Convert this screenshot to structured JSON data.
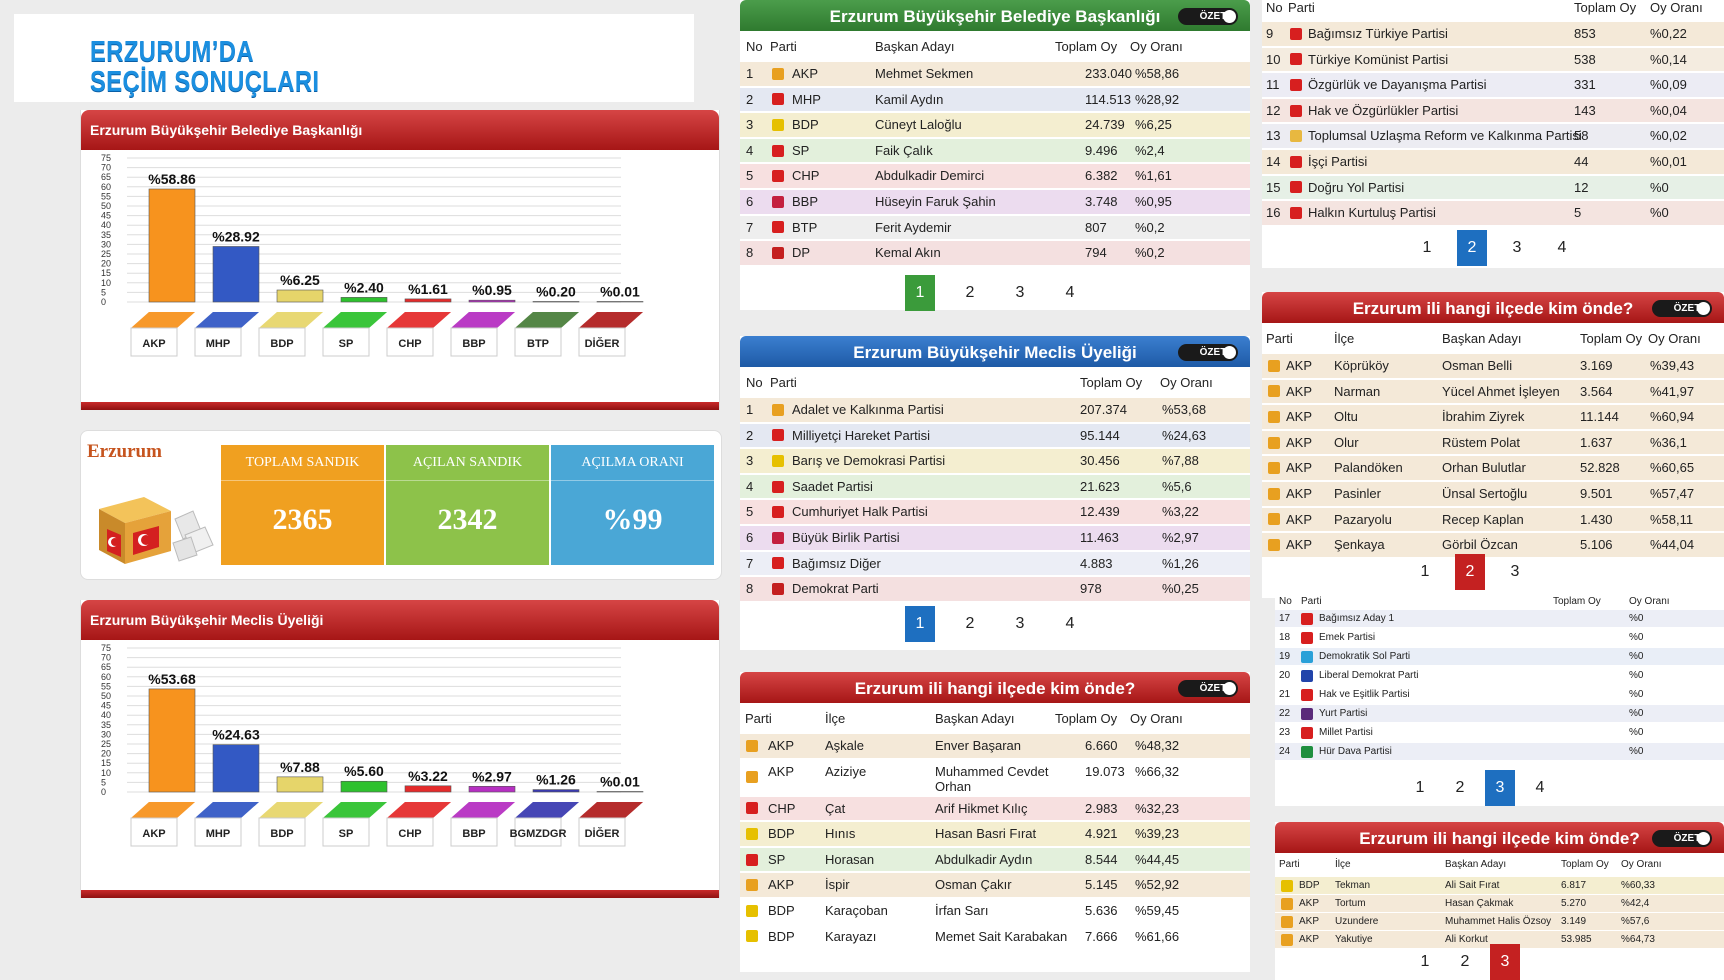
{
  "page_title": {
    "line1": "ERZURUM’DA",
    "line2": "SEÇİM SONUÇLARI"
  },
  "colors": {
    "green_alt": "#eaf3e6",
    "blue_alt": "#e9eef7",
    "red_alt": "#f7ebe9"
  },
  "chart_titles": {
    "mayor": "Erzurum Büyükşehir Belediye Başkanlığı",
    "council": "Erzurum Büyükşehir Meclis Üyeliği"
  },
  "chart_data": [
    {
      "type": "bar",
      "title": "Erzurum Büyükşehir Belediye Başkanlığı",
      "categories": [
        "AKP",
        "MHP",
        "BDP",
        "SP",
        "CHP",
        "BBP",
        "BTP",
        "DİĞER"
      ],
      "values": [
        58.86,
        28.92,
        6.25,
        2.4,
        1.61,
        0.95,
        0.2,
        0.01
      ],
      "value_labels": [
        "%58.86",
        "%28.92",
        "%6.25",
        "%2.40",
        "%1.61",
        "%0.95",
        "%0.20",
        "%0.01"
      ],
      "colors": [
        "#f7931e",
        "#3359c4",
        "#e6d56a",
        "#2ec12e",
        "#e42b2b",
        "#b62fc2",
        "#4a7f3a",
        "#b01f1f"
      ],
      "yticks": [
        0,
        5,
        10,
        15,
        20,
        25,
        30,
        35,
        40,
        45,
        50,
        55,
        60,
        65,
        70,
        75
      ],
      "ylim": [
        0,
        75
      ],
      "grid": true
    },
    {
      "type": "bar",
      "title": "Erzurum Büyükşehir Meclis Üyeliği",
      "categories": [
        "AKP",
        "MHP",
        "BDP",
        "SP",
        "CHP",
        "BBP",
        "BGMZDGR",
        "DİĞER"
      ],
      "values": [
        53.68,
        24.63,
        7.88,
        5.6,
        3.22,
        2.97,
        1.26,
        0.01
      ],
      "value_labels": [
        "%53.68",
        "%24.63",
        "%7.88",
        "%5.60",
        "%3.22",
        "%2.97",
        "%1.26",
        "%0.01"
      ],
      "colors": [
        "#f7931e",
        "#3359c4",
        "#e6d56a",
        "#2ec12e",
        "#e42b2b",
        "#b62fc2",
        "#3a3ab0",
        "#b01f1f"
      ],
      "yticks": [
        0,
        5,
        10,
        15,
        20,
        25,
        30,
        35,
        40,
        45,
        50,
        55,
        60,
        65,
        70,
        75
      ],
      "ylim": [
        0,
        75
      ],
      "grid": true
    }
  ],
  "summary": {
    "city": "Erzurum",
    "tiles": [
      {
        "label": "TOPLAM SANDIK",
        "value": "2365",
        "color": "#f0a020"
      },
      {
        "label": "AÇILAN SANDIK",
        "value": "2342",
        "color": "#8dc24a"
      },
      {
        "label": "AÇILMA ORANI",
        "value": "%99",
        "color": "#4aa7d6"
      }
    ]
  },
  "ozet": "ÖZET",
  "mayor_table": {
    "title": "Erzurum Büyükşehir Belediye Başkanlığı",
    "headers": [
      "No",
      "Parti",
      "Başkan Adayı",
      "Toplam Oy",
      "Oy Oranı"
    ],
    "rows": [
      [
        "1",
        "AKP",
        "Mehmet Sekmen",
        "233.040",
        "%58,86"
      ],
      [
        "2",
        "MHP",
        "Kamil Aydın",
        "114.513",
        "%28,92"
      ],
      [
        "3",
        "BDP",
        "Cüneyt Laloğlu",
        "24.739",
        "%6,25"
      ],
      [
        "4",
        "SP",
        "Faik Çalık",
        "9.496",
        "%2,4"
      ],
      [
        "5",
        "CHP",
        "Abdulkadir Demirci",
        "6.382",
        "%1,61"
      ],
      [
        "6",
        "BBP",
        "Hüseyin Faruk Şahin",
        "3.748",
        "%0,95"
      ],
      [
        "7",
        "BTP",
        "Ferit Aydemir",
        "807",
        "%0,2"
      ],
      [
        "8",
        "DP",
        "Kemal Akın",
        "794",
        "%0,2"
      ]
    ],
    "row_icons": [
      "bulb-icon",
      "crescent-icon",
      "tree-icon",
      "crescent-icon",
      "arrows-icon",
      "crescent-icon",
      "star-icon",
      "horse-icon"
    ],
    "row_colors": [
      "#f4e9d8",
      "#e4e8f2",
      "#f4eed0",
      "#e3f0dc",
      "#f7e0e0",
      "#ecdcef",
      "#eeeeee",
      "#f4e0e0"
    ],
    "icon_colors": [
      "#e8a020",
      "#d71f1f",
      "#e6c000",
      "#d71f1f",
      "#d71f1f",
      "#c41f3f",
      "#d71f1f",
      "#c41f1f"
    ],
    "pages": [
      "1",
      "2",
      "3",
      "4"
    ],
    "active_page": 0
  },
  "council_table": {
    "title": "Erzurum Büyükşehir Meclis Üyeliği",
    "headers": [
      "No",
      "Parti",
      "Toplam Oy",
      "Oy Oranı"
    ],
    "rows": [
      [
        "1",
        "Adalet ve Kalkınma Partisi",
        "207.374",
        "%53,68"
      ],
      [
        "2",
        "Milliyetçi Hareket Partisi",
        "95.144",
        "%24,63"
      ],
      [
        "3",
        "Barış ve Demokrasi Partisi",
        "30.456",
        "%7,88"
      ],
      [
        "4",
        "Saadet Partisi",
        "21.623",
        "%5,6"
      ],
      [
        "5",
        "Cumhuriyet Halk Partisi",
        "12.439",
        "%3,22"
      ],
      [
        "6",
        "Büyük Birlik Partisi",
        "11.463",
        "%2,97"
      ],
      [
        "7",
        "Bağımsız Diğer",
        "4.883",
        "%1,26"
      ],
      [
        "8",
        "Demokrat Parti",
        "978",
        "%0,25"
      ]
    ],
    "row_icons": [
      "bulb-icon",
      "crescent-icon",
      "tree-icon",
      "crescent-icon",
      "arrows-icon",
      "crescent-icon",
      "flag-icon",
      "horse-icon"
    ],
    "row_colors": [
      "#f4e9d8",
      "#e4e8f2",
      "#f4eed0",
      "#e3f0dc",
      "#f7e0e0",
      "#ecdcef",
      "#eceef6",
      "#f4e0e0"
    ],
    "icon_colors": [
      "#e8a020",
      "#d71f1f",
      "#e6c000",
      "#d71f1f",
      "#d71f1f",
      "#c41f3f",
      "#d71f1f",
      "#c41f1f"
    ],
    "pages": [
      "1",
      "2",
      "3",
      "4"
    ],
    "active_page": 0
  },
  "district_table_1": {
    "title": "Erzurum ili hangi ilçede kim önde?",
    "headers": [
      "Parti",
      "İlçe",
      "Başkan Adayı",
      "Toplam Oy",
      "Oy Oranı"
    ],
    "rows": [
      [
        "AKP",
        "Aşkale",
        "Enver Başaran",
        "6.660",
        "%48,32"
      ],
      [
        "AKP",
        "Aziziye",
        "Muhammed Cevdet Orhan",
        "19.073",
        "%66,32"
      ],
      [
        "CHP",
        "Çat",
        "Arif Hikmet Kılıç",
        "2.983",
        "%32,23"
      ],
      [
        "BDP",
        "Hınıs",
        "Hasan Basri Fırat",
        "4.921",
        "%39,23"
      ],
      [
        "SP",
        "Horasan",
        "Abdulkadir Aydın",
        "8.544",
        "%44,45"
      ],
      [
        "AKP",
        "İspir",
        "Osman Çakır",
        "5.145",
        "%52,92"
      ],
      [
        "BDP",
        "Karaçoban",
        "İrfan Sarı",
        "5.636",
        "%59,45"
      ],
      [
        "BDP",
        "Karayazı",
        "Memet Sait Karabakan",
        "7.666",
        "%61,66"
      ]
    ],
    "row_icons": [
      "bulb-icon",
      "bulb-icon",
      "arrows-icon",
      "tree-icon",
      "crescent-icon",
      "bulb-icon",
      "tree-icon",
      "tree-icon"
    ],
    "row_colors": [
      "#f4e9d8",
      "#ffffff",
      "#f7e0e0",
      "#f4eed0",
      "#e3f0dc",
      "#f4e9d8",
      "#ffffff",
      "#ffffff"
    ],
    "icon_colors": [
      "#e8a020",
      "#e8a020",
      "#d71f1f",
      "#e6c000",
      "#d71f1f",
      "#e8a020",
      "#e6c000",
      "#e6c000"
    ]
  },
  "other_parties_table": {
    "headers": [
      "No",
      "Parti",
      "Toplam Oy",
      "Oy Oranı"
    ],
    "rows": [
      [
        "9",
        "Bağımsız Türkiye Partisi",
        "853",
        "%0,22"
      ],
      [
        "10",
        "Türkiye Komünist Partisi",
        "538",
        "%0,14"
      ],
      [
        "11",
        "Özgürlük ve Dayanışma Partisi",
        "331",
        "%0,09"
      ],
      [
        "12",
        "Hak ve Özgürlükler Partisi",
        "143",
        "%0,04"
      ],
      [
        "13",
        "Toplumsal Uzlaşma Reform ve Kalkınma Partisi",
        "58",
        "%0,02"
      ],
      [
        "14",
        "İşçi Partisi",
        "44",
        "%0,01"
      ],
      [
        "15",
        "Doğru Yol Partisi",
        "12",
        "%0"
      ],
      [
        "16",
        "Halkın Kurtuluş Partisi",
        "5",
        "%0"
      ]
    ],
    "row_icons": [
      "flag-icon",
      "hammer-icon",
      "flag-icon",
      "circle-icon",
      "sun-icon",
      "star-icon",
      "horse-icon",
      "star-icon"
    ],
    "row_colors": [
      "#f4e9d8",
      "#f4ece0",
      "#ececf4",
      "#f4e4e0",
      "#ececf2",
      "#f4e9d8",
      "#e6f0e6",
      "#f4e4e0"
    ],
    "icon_colors": [
      "#d71f1f",
      "#d71f1f",
      "#d71f1f",
      "#d71f1f",
      "#e8b840",
      "#d71f1f",
      "#d71f1f",
      "#d71f1f"
    ],
    "pages": [
      "1",
      "2",
      "3",
      "4"
    ],
    "active_page": 1
  },
  "district_table_2": {
    "title": "Erzurum ili hangi ilçede kim önde?",
    "headers": [
      "Parti",
      "İlçe",
      "Başkan Adayı",
      "Toplam Oy",
      "Oy Oranı"
    ],
    "rows": [
      [
        "AKP",
        "Köprüköy",
        "Osman Belli",
        "3.169",
        "%39,43"
      ],
      [
        "AKP",
        "Narman",
        "Yücel Ahmet İşleyen",
        "3.564",
        "%41,97"
      ],
      [
        "AKP",
        "Oltu",
        "İbrahim Ziyrek",
        "11.144",
        "%60,94"
      ],
      [
        "AKP",
        "Olur",
        "Rüstem Polat",
        "1.637",
        "%36,1"
      ],
      [
        "AKP",
        "Palandöken",
        "Orhan Bulutlar",
        "52.828",
        "%60,65"
      ],
      [
        "AKP",
        "Pasinler",
        "Ünsal Sertoğlu",
        "9.501",
        "%57,47"
      ],
      [
        "AKP",
        "Pazaryolu",
        "Recep Kaplan",
        "1.430",
        "%58,11"
      ],
      [
        "AKP",
        "Şenkaya",
        "Görbil Özcan",
        "5.106",
        "%44,04"
      ]
    ],
    "row_colors": [
      "#f4e9d8",
      "#f4e9d8",
      "#f4e9d8",
      "#f4e9d8",
      "#f4e9d8",
      "#f4e9d8",
      "#f4e9d8",
      "#f4e9d8"
    ],
    "pages": [
      "1",
      "2",
      "3"
    ],
    "active_page": 1
  },
  "small_parties_table": {
    "headers": [
      "No",
      "Parti",
      "Toplam Oy",
      "Oy Oranı"
    ],
    "rows": [
      [
        "17",
        "Bağımsız Aday 1",
        "",
        "%0"
      ],
      [
        "18",
        "Emek Partisi",
        "",
        "%0"
      ],
      [
        "19",
        "Demokratik Sol Parti",
        "",
        "%0"
      ],
      [
        "20",
        "Liberal Demokrat Parti",
        "",
        "%0"
      ],
      [
        "21",
        "Hak ve Eşitlik Partisi",
        "",
        "%0"
      ],
      [
        "22",
        "Yurt Partisi",
        "",
        "%0"
      ],
      [
        "23",
        "Millet Partisi",
        "",
        "%0"
      ],
      [
        "24",
        "Hür Dava Partisi",
        "",
        "%0"
      ]
    ],
    "row_icons": [
      "flag-icon",
      "circle-icon",
      "bird-icon",
      "bird-icon",
      "flag-icon",
      "circle-icon",
      "flag-icon",
      "crescent-icon"
    ],
    "row_colors": [
      "#eceef6",
      "#ffffff",
      "#e9eef7",
      "#ffffff",
      "#ffffff",
      "#eceef6",
      "#ffffff",
      "#eceef6"
    ],
    "icon_colors": [
      "#d71f1f",
      "#d71f1f",
      "#2aa0d8",
      "#2244aa",
      "#d71f1f",
      "#5a2a7a",
      "#d71f1f",
      "#1f8f3f"
    ],
    "pages": [
      "1",
      "2",
      "3",
      "4"
    ],
    "active_page": 2
  },
  "district_table_3": {
    "title": "Erzurum ili hangi ilçede kim önde?",
    "headers": [
      "Parti",
      "İlçe",
      "Başkan Adayı",
      "Toplam Oy",
      "Oy Oranı"
    ],
    "rows": [
      [
        "BDP",
        "Tekman",
        "Ali Sait Fırat",
        "6.817",
        "%60,33"
      ],
      [
        "AKP",
        "Tortum",
        "Hasan Çakmak",
        "5.270",
        "%42,4"
      ],
      [
        "AKP",
        "Uzundere",
        "Muhammet Halis Özsoy",
        "3.149",
        "%57,6"
      ],
      [
        "AKP",
        "Yakutiye",
        "Ali Korkut",
        "53.985",
        "%64,73"
      ]
    ],
    "row_icons": [
      "tree-icon",
      "bulb-icon",
      "bulb-icon",
      "bulb-icon"
    ],
    "row_colors": [
      "#f4eed0",
      "#f4e9d8",
      "#f4e9d8",
      "#f4e9d8"
    ],
    "icon_colors": [
      "#e6c000",
      "#e8a020",
      "#e8a020",
      "#e8a020"
    ],
    "pages": [
      "1",
      "2",
      "3"
    ],
    "active_page": 2
  }
}
